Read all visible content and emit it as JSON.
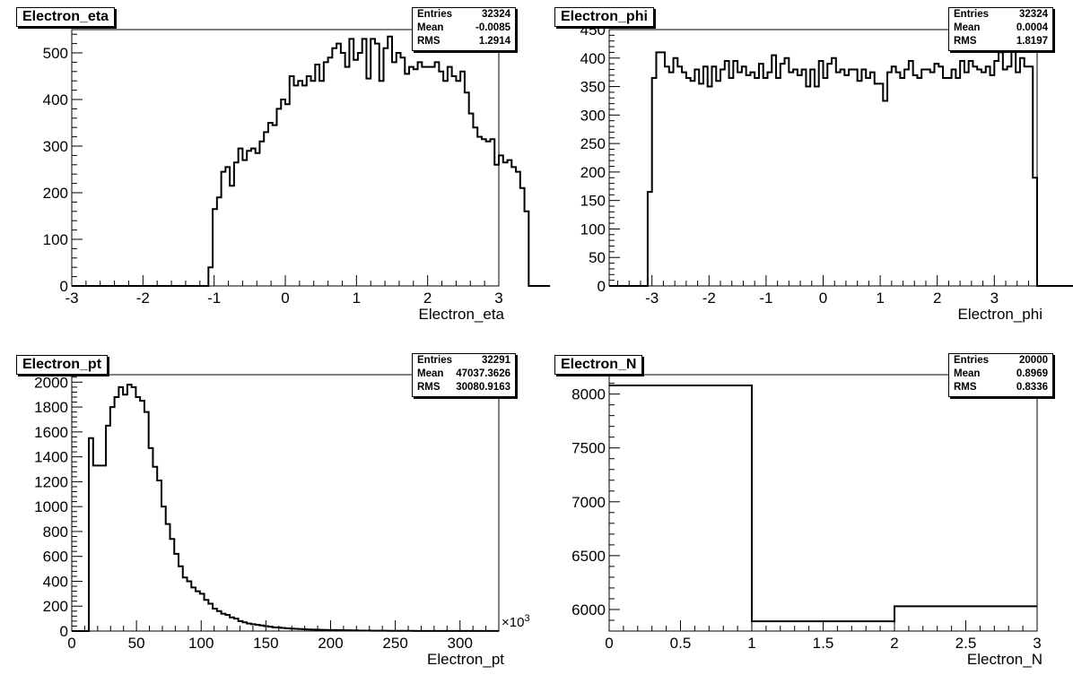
{
  "chart_data": [
    {
      "type": "histogram",
      "title": "Electron_eta",
      "xlabel": "Electron_eta",
      "ylabel": "",
      "xlim": [
        -3,
        3
      ],
      "ylim": [
        0,
        550
      ],
      "xticks": [
        -3,
        -2,
        -1,
        0,
        1,
        2,
        3
      ],
      "xtick_labels": [
        "-3",
        "-2",
        "-1",
        "0",
        "1",
        "2",
        "3"
      ],
      "yticks": [
        0,
        100,
        200,
        300,
        400,
        500
      ],
      "ytick_labels": [
        "0",
        "100",
        "200",
        "300",
        "400",
        "500"
      ],
      "bins": 100,
      "values": [
        0,
        0,
        0,
        0,
        0,
        0,
        0,
        0,
        0,
        0,
        0,
        0,
        0,
        0,
        0,
        0,
        0,
        0,
        0,
        0,
        0,
        0,
        0,
        0,
        0,
        0,
        0,
        0,
        0,
        0,
        0,
        0,
        40,
        165,
        190,
        245,
        255,
        215,
        265,
        295,
        270,
        290,
        295,
        285,
        310,
        330,
        350,
        345,
        380,
        400,
        390,
        450,
        430,
        440,
        430,
        450,
        440,
        475,
        440,
        480,
        490,
        510,
        520,
        500,
        470,
        530,
        485,
        500,
        530,
        445,
        530,
        520,
        440,
        510,
        535,
        480,
        500,
        490,
        455,
        470,
        465,
        480,
        470,
        470,
        470,
        480,
        460,
        440,
        470,
        450,
        440,
        460,
        415,
        370,
        340,
        320,
        315,
        310,
        315,
        260,
        280,
        265,
        270,
        255,
        245,
        210,
        160,
        0,
        0,
        0,
        0,
        0
      ],
      "stats": {
        "entries": "32324",
        "mean": "-0.0085",
        "rms": "1.2914"
      }
    },
    {
      "type": "histogram",
      "title": "Electron_phi",
      "xlabel": "Electron_phi",
      "ylabel": "",
      "xlim": [
        -3.75,
        3.75
      ],
      "ylim": [
        0,
        450
      ],
      "xticks": [
        -3,
        -2,
        -1,
        0,
        1,
        2,
        3
      ],
      "xtick_labels": [
        "-3",
        "-2",
        "-1",
        "0",
        "1",
        "2",
        "3"
      ],
      "yticks": [
        0,
        50,
        100,
        150,
        200,
        250,
        300,
        350,
        400,
        450
      ],
      "ytick_labels": [
        "0",
        "50",
        "100",
        "150",
        "200",
        "250",
        "300",
        "350",
        "400",
        "450"
      ],
      "bins": 100,
      "values": [
        0,
        0,
        0,
        0,
        0,
        0,
        0,
        0,
        0,
        165,
        365,
        410,
        410,
        385,
        375,
        400,
        385,
        375,
        365,
        360,
        380,
        355,
        385,
        350,
        385,
        360,
        380,
        395,
        365,
        395,
        375,
        385,
        370,
        375,
        365,
        390,
        365,
        375,
        405,
        365,
        390,
        400,
        375,
        380,
        370,
        380,
        350,
        380,
        350,
        395,
        365,
        390,
        400,
        375,
        380,
        370,
        380,
        380,
        360,
        380,
        365,
        375,
        355,
        355,
        325,
        375,
        385,
        375,
        365,
        380,
        395,
        370,
        365,
        380,
        380,
        375,
        390,
        385,
        365,
        365,
        380,
        365,
        395,
        375,
        395,
        385,
        380,
        375,
        385,
        370,
        395,
        410,
        380,
        385,
        420,
        375,
        400,
        385,
        385,
        190,
        0,
        0,
        0,
        0,
        0,
        0,
        0,
        0,
        0,
        0
      ],
      "stats": {
        "entries": "32324",
        "mean": "0.0004",
        "rms": "1.8197"
      }
    },
    {
      "type": "histogram",
      "title": "Electron_pt",
      "xlabel": "Electron_pt",
      "ylabel": "",
      "x_exponent_label": "×10",
      "x_exponent_power": "3",
      "xlim": [
        0,
        330
      ],
      "ylim": [
        0,
        2060
      ],
      "xticks": [
        0,
        50,
        100,
        150,
        200,
        250,
        300
      ],
      "xtick_labels": [
        "0",
        "50",
        "100",
        "150",
        "200",
        "250",
        "300"
      ],
      "yticks": [
        0,
        200,
        400,
        600,
        800,
        1000,
        1200,
        1400,
        1600,
        1800,
        2000
      ],
      "ytick_labels": [
        "0",
        "200",
        "400",
        "600",
        "800",
        "1000",
        "1200",
        "1400",
        "1600",
        "1800",
        "2000"
      ],
      "bins": 100,
      "values": [
        0,
        0,
        0,
        0,
        1550,
        1330,
        1330,
        1330,
        1650,
        1800,
        1880,
        1960,
        1900,
        1980,
        1960,
        1880,
        1850,
        1760,
        1470,
        1320,
        1210,
        1000,
        860,
        740,
        620,
        520,
        430,
        400,
        350,
        320,
        300,
        250,
        220,
        180,
        160,
        140,
        130,
        110,
        100,
        80,
        70,
        60,
        55,
        50,
        45,
        40,
        35,
        30,
        28,
        25,
        22,
        20,
        18,
        16,
        14,
        13,
        12,
        11,
        10,
        9,
        8,
        8,
        7,
        6,
        6,
        5,
        5,
        4,
        4,
        4,
        3,
        3,
        3,
        3,
        2,
        2,
        2,
        2,
        2,
        2,
        1,
        1,
        1,
        1,
        1,
        1,
        1,
        1,
        1,
        1,
        1,
        1,
        1,
        1,
        1,
        1,
        1,
        1,
        1,
        1
      ],
      "stats": {
        "entries": "32291",
        "mean": "47037.3626",
        "rms": "30080.9163"
      }
    },
    {
      "type": "histogram",
      "title": "Electron_N",
      "xlabel": "Electron_N",
      "ylabel": "",
      "xlim": [
        0,
        3
      ],
      "ylim": [
        5800,
        8180
      ],
      "xticks": [
        0,
        0.5,
        1,
        1.5,
        2,
        2.5,
        3
      ],
      "xtick_labels": [
        "0",
        "0.5",
        "1",
        "1.5",
        "2",
        "2.5",
        "3"
      ],
      "yticks": [
        6000,
        6500,
        7000,
        7500,
        8000
      ],
      "ytick_labels": [
        "6000",
        "6500",
        "7000",
        "7500",
        "8000"
      ],
      "bins": 3,
      "values": [
        8080,
        5890,
        6030
      ],
      "stats": {
        "entries": "20000",
        "mean": "0.8969",
        "rms": "0.8336"
      }
    }
  ],
  "stats_labels": {
    "entries": "Entries",
    "mean": "Mean",
    "rms": "RMS"
  }
}
